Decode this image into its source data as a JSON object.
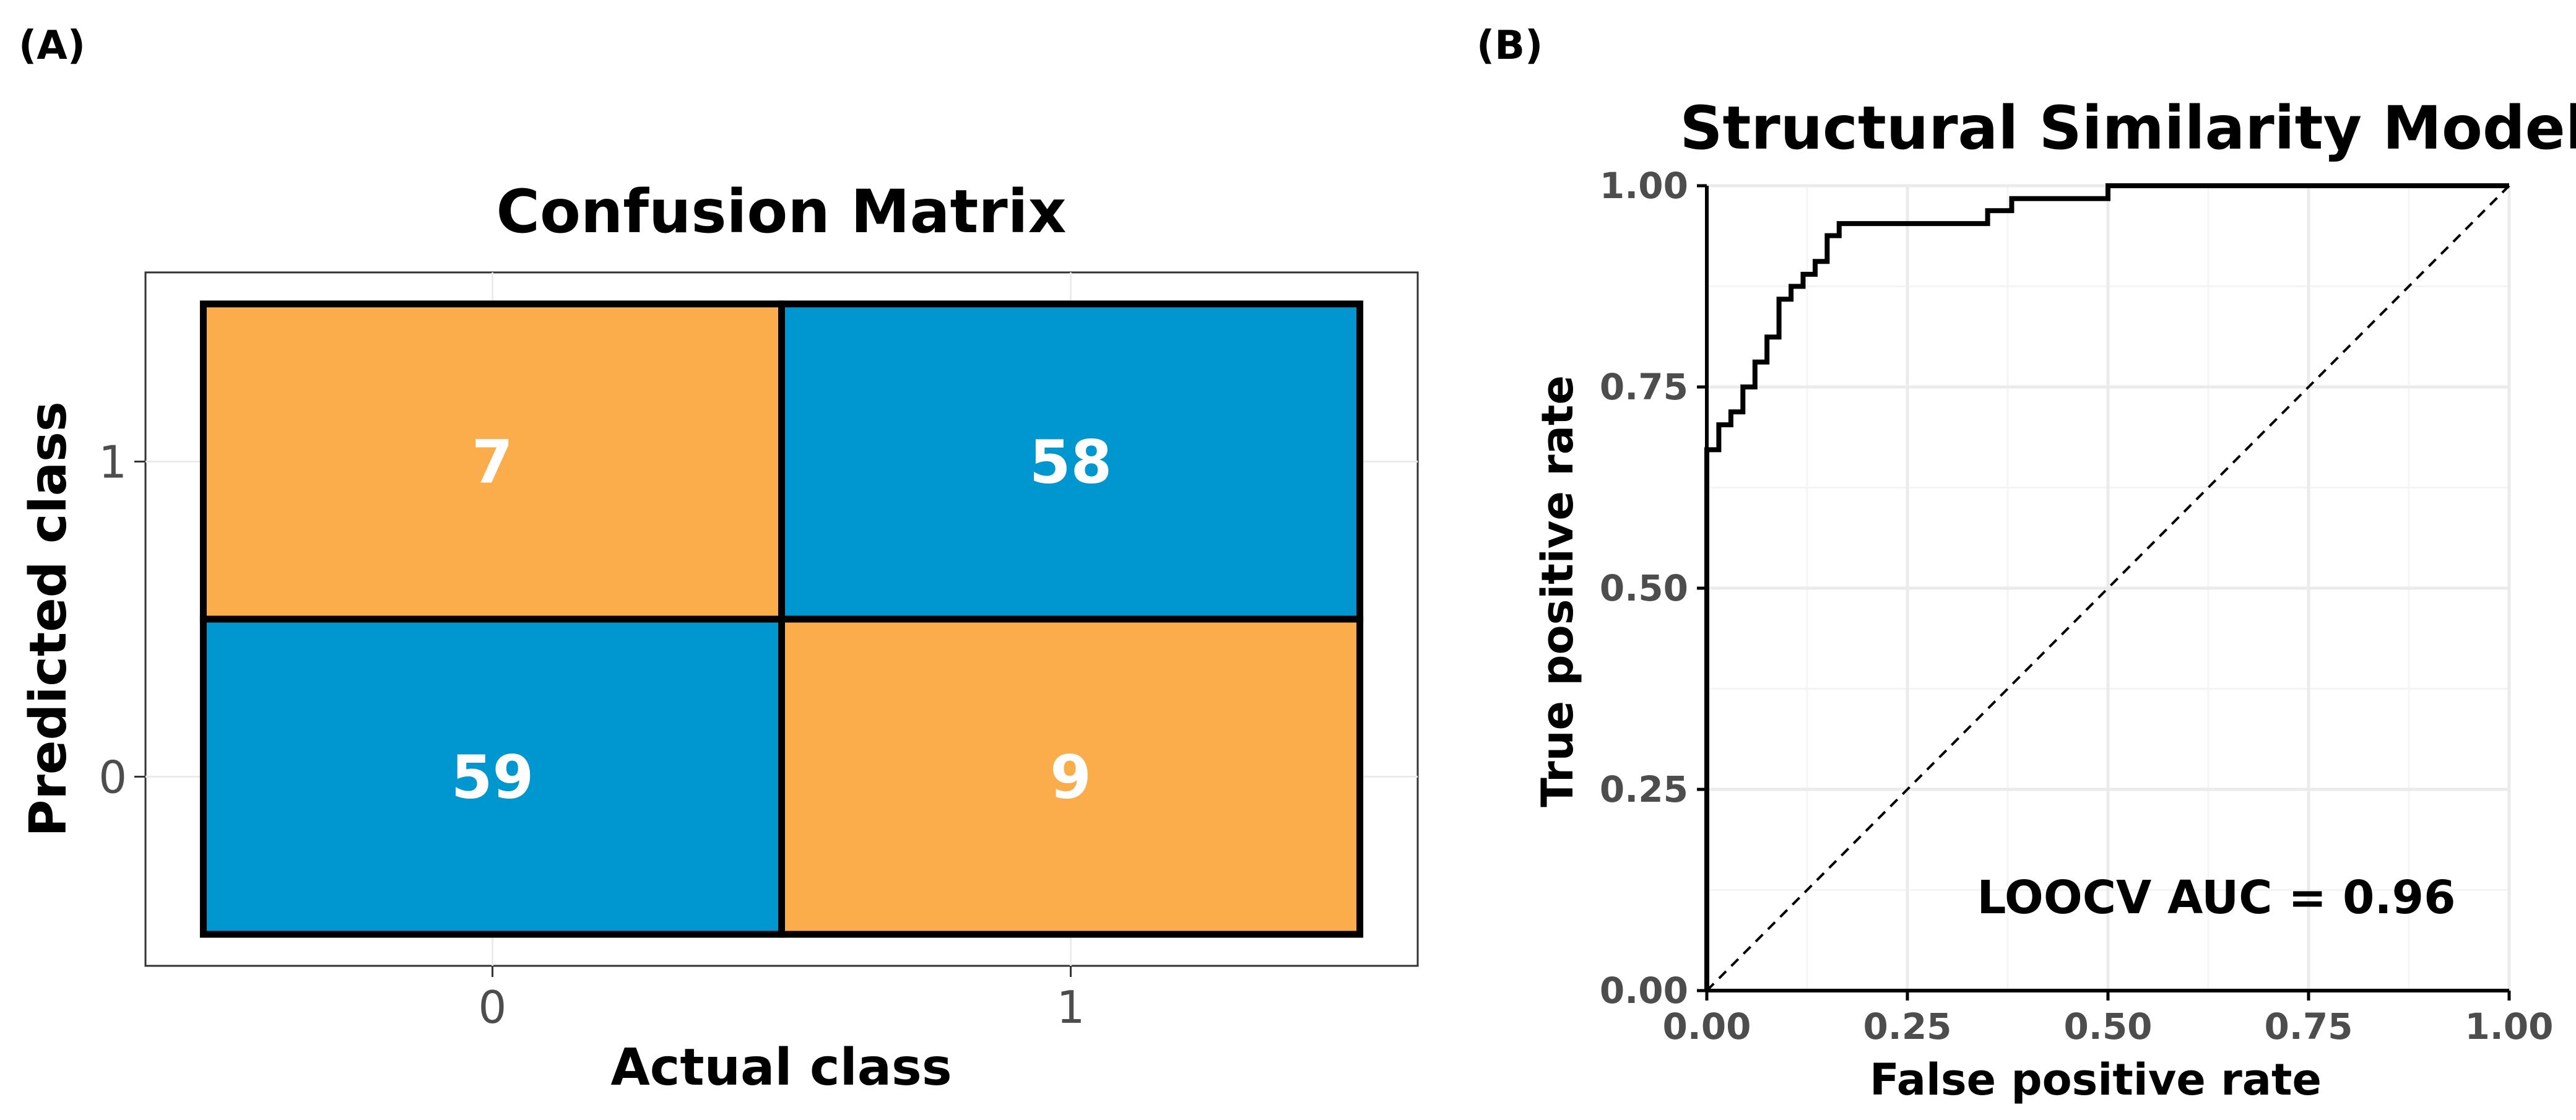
{
  "panels": {
    "a_label": "(A)",
    "b_label": "(B)"
  },
  "colors": {
    "high": "#0096d0",
    "low": "#fbad4b",
    "grid": "#ebebeb",
    "tick_text": "#4d4d4d"
  },
  "chart_data": [
    {
      "type": "heatmap",
      "title": "Confusion Matrix",
      "xlabel": "Actual class",
      "ylabel": "Predicted class",
      "x_categories": [
        "0",
        "1"
      ],
      "y_categories": [
        "0",
        "1"
      ],
      "cells": [
        {
          "actual": "0",
          "predicted": "1",
          "value": 7,
          "label": "7",
          "color": "#fbad4b"
        },
        {
          "actual": "1",
          "predicted": "1",
          "value": 58,
          "label": "58",
          "color": "#0096d0"
        },
        {
          "actual": "0",
          "predicted": "0",
          "value": 59,
          "label": "59",
          "color": "#0096d0"
        },
        {
          "actual": "1",
          "predicted": "0",
          "value": 9,
          "label": "9",
          "color": "#fbad4b"
        }
      ]
    },
    {
      "type": "line",
      "title": "Structural Similarity Model",
      "xlabel": "False positive rate",
      "ylabel": "True positive rate",
      "xlim": [
        0,
        1
      ],
      "ylim": [
        0,
        1
      ],
      "x_ticks": [
        "0.00",
        "0.25",
        "0.50",
        "0.75",
        "1.00"
      ],
      "y_ticks": [
        "0.00",
        "0.25",
        "0.50",
        "0.75",
        "1.00"
      ],
      "annotation": "LOOCV AUC = 0.96",
      "series": [
        {
          "name": "ROC",
          "style": "solid",
          "points": [
            [
              0,
              0
            ],
            [
              0,
              0.672
            ],
            [
              0.015,
              0.672
            ],
            [
              0.015,
              0.703
            ],
            [
              0.03,
              0.703
            ],
            [
              0.03,
              0.719
            ],
            [
              0.045,
              0.719
            ],
            [
              0.045,
              0.75
            ],
            [
              0.06,
              0.75
            ],
            [
              0.06,
              0.781
            ],
            [
              0.075,
              0.781
            ],
            [
              0.075,
              0.812
            ],
            [
              0.09,
              0.812
            ],
            [
              0.09,
              0.859
            ],
            [
              0.105,
              0.859
            ],
            [
              0.105,
              0.875
            ],
            [
              0.12,
              0.875
            ],
            [
              0.12,
              0.89
            ],
            [
              0.135,
              0.89
            ],
            [
              0.135,
              0.906
            ],
            [
              0.15,
              0.906
            ],
            [
              0.15,
              0.938
            ],
            [
              0.165,
              0.938
            ],
            [
              0.165,
              0.953
            ],
            [
              0.35,
              0.953
            ],
            [
              0.35,
              0.969
            ],
            [
              0.38,
              0.969
            ],
            [
              0.38,
              0.984
            ],
            [
              0.5,
              0.984
            ],
            [
              0.5,
              1.0
            ],
            [
              1.0,
              1.0
            ]
          ]
        },
        {
          "name": "Chance",
          "style": "dashed",
          "points": [
            [
              0,
              0
            ],
            [
              1,
              1
            ]
          ]
        }
      ]
    }
  ]
}
